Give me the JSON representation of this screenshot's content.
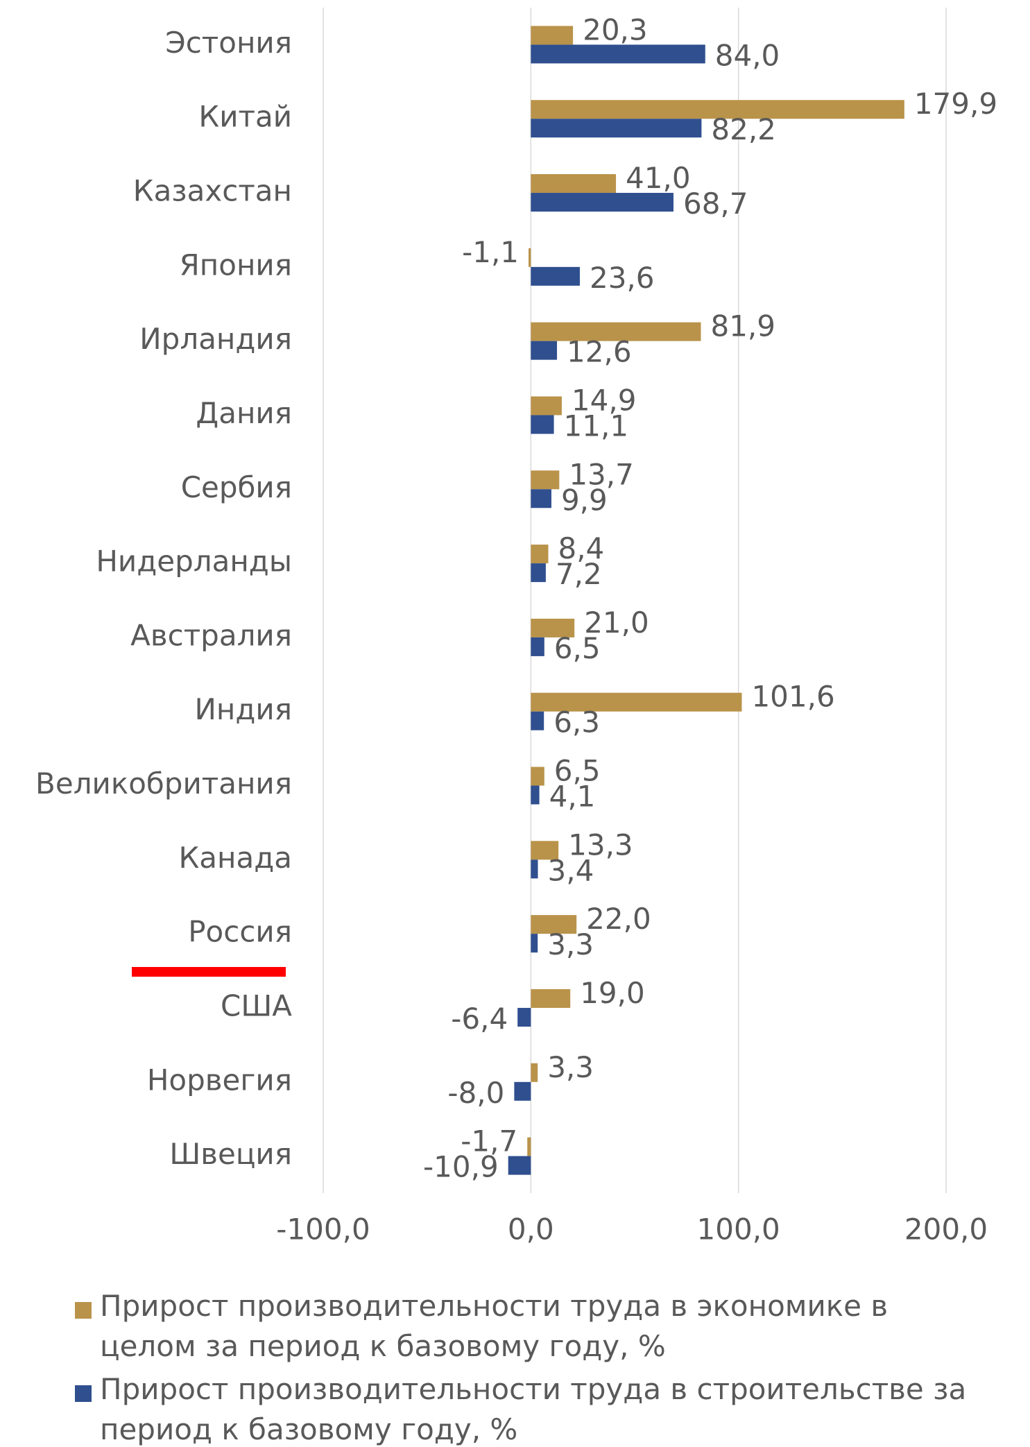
{
  "chart_data": {
    "type": "hbar",
    "categories": [
      "Эстония",
      "Китай",
      "Казахстан",
      "Япония",
      "Ирландия",
      "Дания",
      "Сербия",
      "Нидерланды",
      "Австралия",
      "Индия",
      "Великобритания",
      "Канада",
      "Россия",
      "США",
      "Норвегия",
      "Швеция"
    ],
    "series": [
      {
        "name": "Прирост производительности труда в экономике в целом за период к базовому году, %",
        "color": "#b9934a",
        "values": [
          20.3,
          179.9,
          41.0,
          -1.1,
          81.9,
          14.9,
          13.7,
          8.4,
          21.0,
          101.6,
          6.5,
          13.3,
          22.0,
          19.0,
          3.3,
          -1.7
        ],
        "value_labels": [
          "20,3",
          "179,9",
          "41,0",
          "-1,1",
          "81,9",
          "14,9",
          "13,7",
          "8,4",
          "21,0",
          "101,6",
          "6,5",
          "13,3",
          "22,0",
          "19,0",
          "3,3",
          "-1,7"
        ]
      },
      {
        "name": "Прирост производительности труда в строительстве за период к базовому году, %",
        "color": "#2f4f8f",
        "values": [
          84.0,
          82.2,
          68.7,
          23.6,
          12.6,
          11.1,
          9.9,
          7.2,
          6.5,
          6.3,
          4.1,
          3.4,
          3.3,
          -6.4,
          -8.0,
          -10.9
        ],
        "value_labels": [
          "84,0",
          "82,2",
          "68,7",
          "23,6",
          "12,6",
          "11,1",
          "9,9",
          "7,2",
          "6,5",
          "6,3",
          "4,1",
          "3,4",
          "3,3",
          "-6,4",
          "-8,0",
          "-10,9"
        ]
      }
    ],
    "xlim": [
      -100,
      200
    ],
    "xticks": [
      {
        "value": -100,
        "label": "-100,0"
      },
      {
        "value": 0,
        "label": "0,0"
      },
      {
        "value": 100,
        "label": "100,0"
      },
      {
        "value": 200,
        "label": "200,0"
      }
    ],
    "grid": true
  }
}
